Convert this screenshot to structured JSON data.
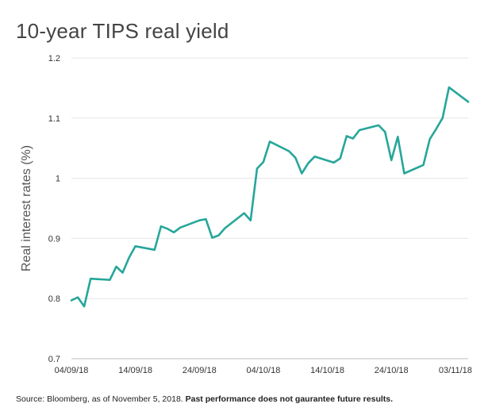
{
  "chart_data": {
    "type": "line",
    "title": "10-year TIPS real yield",
    "xlabel": "",
    "ylabel": "Real interest rates (%)",
    "ylim": [
      0.7,
      1.2
    ],
    "yticks": [
      "0.7",
      "0.8",
      "0.9",
      "1",
      "1.1",
      "1.2"
    ],
    "xticks": [
      "04/09/18",
      "14/09/18",
      "24/09/18",
      "04/10/18",
      "14/10/18",
      "24/10/18",
      "03/11/18"
    ],
    "grid": "horizontal",
    "line_color": "#26A69A",
    "series": [
      {
        "x": [
          "2018-09-04",
          "2018-09-05",
          "2018-09-06",
          "2018-09-07",
          "2018-09-10",
          "2018-09-11",
          "2018-09-12",
          "2018-09-13",
          "2018-09-14",
          "2018-09-17",
          "2018-09-18",
          "2018-09-19",
          "2018-09-20",
          "2018-09-21",
          "2018-09-24",
          "2018-09-25",
          "2018-09-26",
          "2018-09-27",
          "2018-09-28",
          "2018-10-01",
          "2018-10-02",
          "2018-10-03",
          "2018-10-04",
          "2018-10-05",
          "2018-10-08",
          "2018-10-09",
          "2018-10-10",
          "2018-10-11",
          "2018-10-12",
          "2018-10-15",
          "2018-10-16",
          "2018-10-17",
          "2018-10-18",
          "2018-10-19",
          "2018-10-22",
          "2018-10-23",
          "2018-10-24",
          "2018-10-25",
          "2018-10-26",
          "2018-10-29",
          "2018-10-30",
          "2018-10-31",
          "2018-11-01",
          "2018-11-02"
        ],
        "values": [
          0.797,
          0.802,
          0.787,
          0.833,
          0.831,
          0.853,
          0.843,
          0.868,
          0.887,
          0.881,
          0.92,
          0.916,
          0.91,
          0.918,
          0.93,
          0.932,
          0.901,
          0.905,
          0.917,
          0.942,
          0.93,
          1.016,
          1.027,
          1.061,
          1.045,
          1.034,
          1.008,
          1.025,
          1.036,
          1.026,
          1.033,
          1.07,
          1.066,
          1.08,
          1.088,
          1.077,
          1.03,
          1.069,
          1.008,
          1.022,
          1.065,
          1.082,
          1.1,
          1.151
        ]
      }
    ],
    "last_point": {
      "x": "2018-11-05",
      "value": 1.127
    }
  },
  "footer": {
    "source_text": "Source: Bloomberg, as of November 5, 2018.",
    "disclaimer": "Past performance does not gaurantee future results."
  }
}
